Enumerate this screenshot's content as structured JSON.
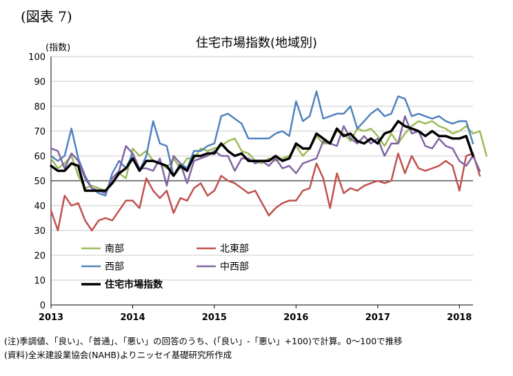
{
  "figure_label": "(図表 7)",
  "notes": [
    "(注)季調値、「良い」、「普通」、「悪い」の回答のうち、(「良い」-「悪い」+100)で計算。0～100で推移",
    "(資料)全米建設業協会(NAHB)よりニッセイ基礎研究所作成"
  ],
  "chart_data": {
    "type": "line",
    "title": "住宅市場指数(地域別)",
    "ylabel": "(指数)",
    "xlabel": "",
    "ylim": [
      0,
      100
    ],
    "yticks": [
      0,
      10,
      20,
      30,
      40,
      50,
      60,
      70,
      80,
      90,
      100
    ],
    "xticks": [
      "2013",
      "2014",
      "2015",
      "2016",
      "2017",
      "2018"
    ],
    "reference_line": 50,
    "grid": true,
    "legend_position": "lower-left",
    "x_start": "2013-01",
    "series": [
      {
        "name": "南部",
        "color": "#9bbb59",
        "width": 2.5,
        "values": [
          59,
          55,
          57,
          60,
          52,
          47,
          48,
          47,
          46,
          49,
          53,
          51,
          63,
          60,
          62,
          58,
          57,
          55,
          59,
          55,
          59,
          59,
          63,
          62,
          63,
          64,
          66,
          67,
          62,
          61,
          58,
          57,
          59,
          58,
          59,
          60,
          64,
          60,
          63,
          68,
          65,
          65,
          70,
          69,
          66,
          71,
          70,
          71,
          68,
          64,
          69,
          65,
          69,
          72,
          74,
          73,
          74,
          72,
          71,
          69,
          70,
          72,
          69,
          70,
          60
        ]
      },
      {
        "name": "北東部",
        "color": "#c0504d",
        "width": 2.5,
        "values": [
          38,
          30,
          44,
          40,
          41,
          34,
          30,
          34,
          35,
          34,
          38,
          42,
          42,
          39,
          51,
          46,
          43,
          46,
          37,
          43,
          42,
          47,
          49,
          44,
          46,
          52,
          50,
          49,
          47,
          45,
          46,
          41,
          36,
          39,
          41,
          42,
          42,
          46,
          47,
          57,
          51,
          39,
          53,
          45,
          47,
          46,
          48,
          49,
          50,
          49,
          50,
          61,
          53,
          60,
          55,
          54,
          55,
          56,
          58,
          56,
          46,
          60,
          61,
          52
        ]
      },
      {
        "name": "西部",
        "color": "#4f81bd",
        "width": 2.5,
        "values": [
          60,
          58,
          60,
          71,
          59,
          52,
          47,
          45,
          44,
          53,
          58,
          55,
          61,
          54,
          60,
          74,
          65,
          64,
          52,
          57,
          55,
          62,
          62,
          64,
          65,
          76,
          77,
          75,
          73,
          67,
          67,
          67,
          67,
          69,
          70,
          68,
          82,
          74,
          76,
          86,
          75,
          76,
          77,
          77,
          80,
          71,
          74,
          77,
          79,
          76,
          77,
          84,
          83,
          76,
          77,
          76,
          75,
          76,
          74,
          73,
          74,
          74,
          65
        ]
      },
      {
        "name": "中西部",
        "color": "#8064a2",
        "width": 2.5,
        "values": [
          63,
          62,
          55,
          61,
          58,
          51,
          47,
          46,
          45,
          51,
          54,
          64,
          61,
          55,
          55,
          54,
          59,
          48,
          60,
          57,
          49,
          58,
          59,
          60,
          62,
          60,
          60,
          54,
          59,
          59,
          57,
          58,
          56,
          59,
          55,
          56,
          53,
          57,
          58,
          59,
          66,
          65,
          64,
          72,
          67,
          65,
          68,
          65,
          67,
          60,
          65,
          65,
          76,
          69,
          70,
          64,
          63,
          67,
          64,
          63,
          58,
          56,
          60,
          54
        ]
      },
      {
        "name": "住宅市場指数",
        "color": "#000000",
        "width": 3.5,
        "values": [
          56,
          54,
          54,
          57,
          56,
          46,
          46,
          46,
          46,
          49,
          53,
          55,
          59,
          54,
          58,
          58,
          57,
          56,
          52,
          56,
          54,
          60,
          60,
          61,
          61,
          65,
          62,
          60,
          61,
          58,
          58,
          58,
          58,
          60,
          58,
          59,
          65,
          63,
          63,
          69,
          67,
          65,
          71,
          68,
          69,
          66,
          65,
          67,
          65,
          69,
          70,
          74,
          72,
          71,
          70,
          68,
          70,
          68,
          68,
          67,
          67,
          68,
          60
        ]
      }
    ]
  }
}
